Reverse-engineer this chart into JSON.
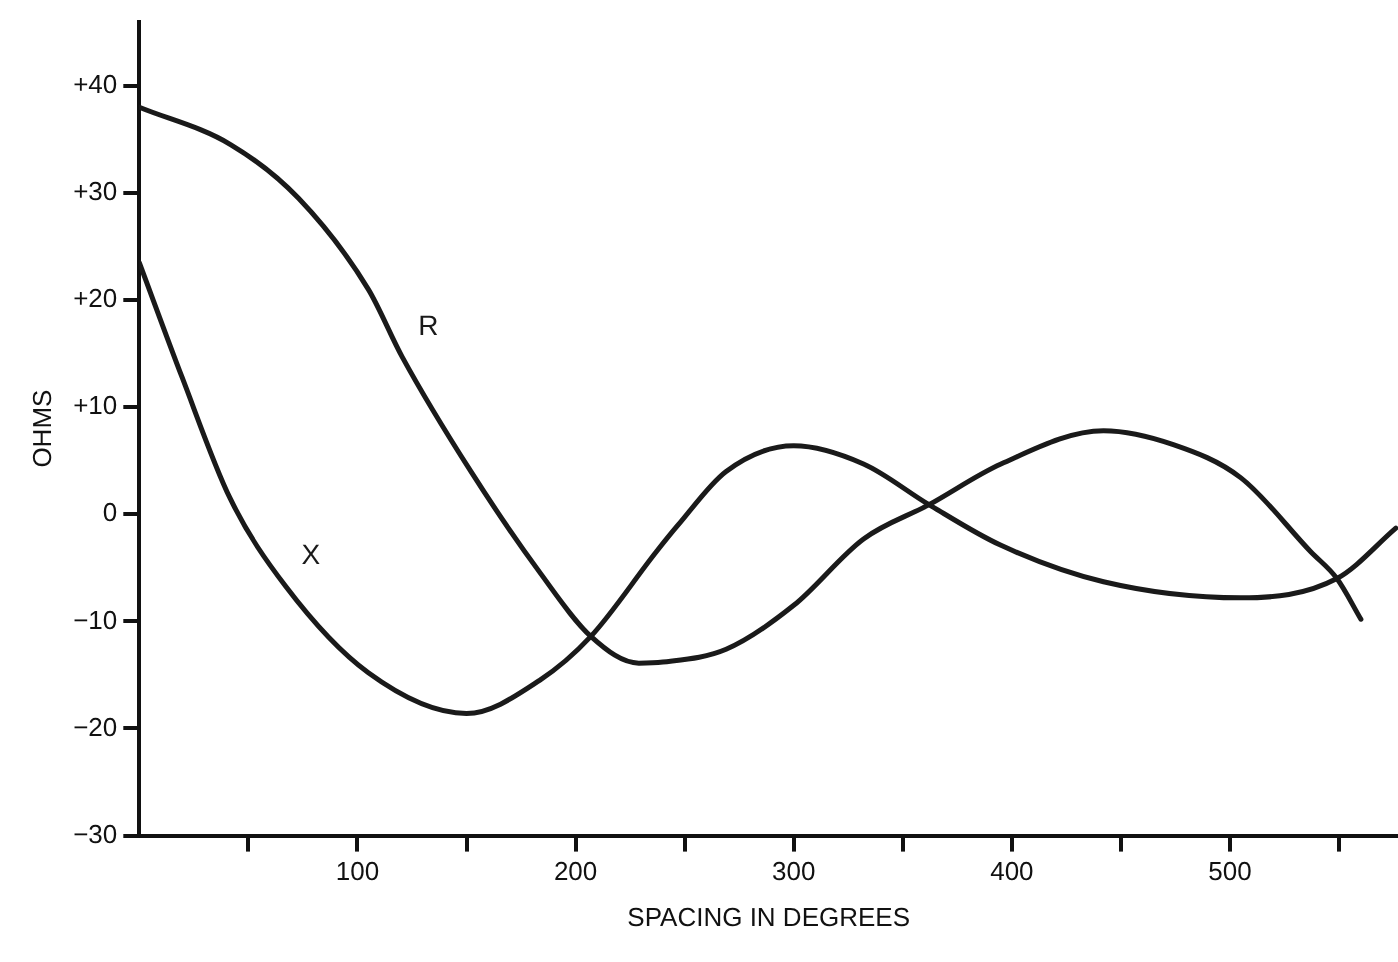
{
  "chart_data": {
    "type": "line",
    "xlabel": "SPACING IN DEGREES",
    "ylabel": "OHMS",
    "xlim": [
      0,
      577
    ],
    "ylim": [
      -30,
      46
    ],
    "xticks": [
      {
        "value": 50,
        "label": null
      },
      100,
      {
        "value": 150,
        "label": null
      },
      200,
      {
        "value": 250,
        "label": null
      },
      300,
      {
        "value": 350,
        "label": null
      },
      400,
      {
        "value": 450,
        "label": null
      },
      500,
      {
        "value": 550,
        "label": null
      }
    ],
    "yticks": [
      {
        "value": -30,
        "label": "−30"
      },
      {
        "value": -20,
        "label": "−20"
      },
      {
        "value": -10,
        "label": "−10"
      },
      0,
      {
        "value": 10,
        "label": "+10"
      },
      {
        "value": 20,
        "label": "+20"
      },
      {
        "value": 30,
        "label": "+30"
      },
      {
        "value": 40,
        "label": "+40"
      }
    ],
    "marker": "none",
    "line_style": "solid",
    "series": [
      {
        "name": "R",
        "color": "#1a1a1a",
        "x": [
          0,
          42,
          73,
          105,
          120.5,
          152,
          183.5,
          207,
          229,
          240,
          269,
          300,
          332,
          362,
          395,
          442,
          474,
          505,
          537,
          549,
          560
        ],
        "values": [
          38,
          34.5,
          29.5,
          21,
          14.7,
          4,
          -5.4,
          -11.4,
          -13.9,
          -13.8,
          -12.6,
          -8.5,
          -2.3,
          0.9,
          4.7,
          7.8,
          6.5,
          3.4,
          -3.5,
          -6,
          -9.8
        ]
      },
      {
        "name": "X",
        "color": "#1a1a1a",
        "x": [
          0,
          19.6,
          41.6,
          67,
          105,
          150,
          183.5,
          207,
          237,
          247,
          269,
          300,
          332,
          362,
          395,
          442,
          505,
          549,
          576
        ],
        "values": [
          23.5,
          12.8,
          1.5,
          -6.7,
          -14.8,
          -18.6,
          -15.5,
          -11.4,
          -3.5,
          -1,
          4,
          6.4,
          4.7,
          0.9,
          -2.9,
          -6.3,
          -7.8,
          -6,
          -1.3
        ]
      }
    ]
  }
}
